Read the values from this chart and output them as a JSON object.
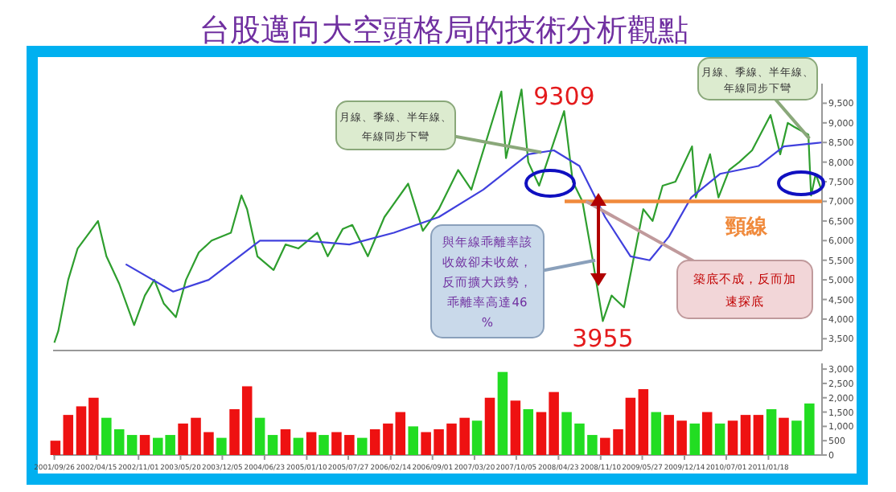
{
  "chart_data": [
    {
      "type": "line",
      "title": "台股邁向大空頭格局的技術分析觀點",
      "tick_labels": "y",
      "xlim": [
        "2001-09-20",
        "2011-09-30"
      ],
      "ylim": [
        3200,
        10000
      ],
      "yticks": [
        {
          "value": 3500,
          "label": "3,500"
        },
        {
          "value": 4000,
          "label": "4,000"
        },
        {
          "value": 4500,
          "label": "4,500"
        },
        {
          "value": 5000,
          "label": "5,000"
        },
        {
          "value": 5500,
          "label": "5,500"
        },
        {
          "value": 6000,
          "label": "6,000"
        },
        {
          "value": 6500,
          "label": "6,500"
        },
        {
          "value": 7000,
          "label": "7,000"
        },
        {
          "value": 7500,
          "label": "7,500"
        },
        {
          "value": 8000,
          "label": "8,000"
        },
        {
          "value": 8500,
          "label": "8,500"
        },
        {
          "value": 9000,
          "label": "9,000"
        },
        {
          "value": 9500,
          "label": "9,500"
        }
      ],
      "series": [
        {
          "color": "#2e9e2e",
          "x": [
            "2001-09-26",
            "2001-10-15",
            "2001-12-01",
            "2002-01-15",
            "2002-04-22",
            "2002-06-01",
            "2002-08-01",
            "2002-10-11",
            "2002-12-01",
            "2003-01-15",
            "2003-03-01",
            "2003-04-28",
            "2003-06-15",
            "2003-08-15",
            "2003-10-15",
            "2004-01-15",
            "2004-03-05",
            "2004-04-01",
            "2004-05-20",
            "2004-08-05",
            "2004-10-01",
            "2004-12-01",
            "2005-03-01",
            "2005-04-20",
            "2005-07-01",
            "2005-08-15",
            "2005-10-28",
            "2006-01-15",
            "2006-05-08",
            "2006-07-17",
            "2006-10-01",
            "2007-01-01",
            "2007-03-05",
            "2007-07-26",
            "2007-08-17",
            "2007-10-30",
            "2007-12-01",
            "2008-01-22",
            "2008-05-20",
            "2008-06-30",
            "2008-08-15",
            "2008-09-30",
            "2008-11-20",
            "2009-01-01",
            "2009-03-01",
            "2009-06-01",
            "2009-07-15",
            "2009-09-01",
            "2009-11-01",
            "2010-01-19",
            "2010-02-06",
            "2010-04-15",
            "2010-05-25",
            "2010-07-15",
            "2010-09-01",
            "2010-11-01",
            "2011-01-28",
            "2011-03-15",
            "2011-04-20",
            "2011-05-20",
            "2011-07-27",
            "2011-08-09",
            "2011-08-31",
            "2011-09-27"
          ],
          "values": [
            3400,
            3700,
            5000,
            5800,
            6500,
            5600,
            4900,
            3850,
            4600,
            5000,
            4400,
            4050,
            5000,
            5700,
            6000,
            6200,
            7150,
            6800,
            5600,
            5250,
            5900,
            5800,
            6200,
            5600,
            6300,
            6400,
            5600,
            6600,
            7450,
            6250,
            6800,
            7800,
            7300,
            9800,
            8100,
            9850,
            8000,
            7400,
            9300,
            7500,
            7000,
            5600,
            3950,
            4600,
            4300,
            6800,
            6500,
            7400,
            7500,
            8400,
            7100,
            8200,
            7100,
            7800,
            8000,
            8300,
            9200,
            8200,
            9000,
            8900,
            8700,
            7150,
            7700,
            7300
          ]
        },
        {
          "color": "#4040dd",
          "x": [
            "2002-09-01",
            "2003-04-15",
            "2003-10-01",
            "2004-06-01",
            "2005-01-01",
            "2005-08-01",
            "2006-03-01",
            "2006-10-01",
            "2007-05-01",
            "2007-12-01",
            "2008-04-01",
            "2008-08-01",
            "2008-12-01",
            "2009-04-01",
            "2009-07-01",
            "2009-10-01",
            "2010-01-15",
            "2010-06-01",
            "2010-12-01",
            "2011-04-01",
            "2011-09-27"
          ],
          "values": [
            5400,
            4700,
            5000,
            6000,
            6000,
            5900,
            6200,
            6600,
            7300,
            8200,
            8300,
            7900,
            6600,
            5600,
            5500,
            6100,
            7100,
            7700,
            7900,
            8400,
            8500
          ]
        }
      ],
      "ref_lines": [
        {
          "axis": "y",
          "value": 7000,
          "label": "頸線",
          "color": "#f08a3c"
        }
      ],
      "annotations": [
        {
          "text": "9309",
          "x": "2008-05-20",
          "y": 9309
        },
        {
          "text": "3955",
          "x": "2008-11-20",
          "y": 3955
        },
        {
          "text": "月線、季線、半年線、年線同步下彎",
          "x": "2008-02-01",
          "y": 8250
        },
        {
          "text": "月線、季線、半年線、年線同步下彎",
          "x": "2011-08-01",
          "y": 8600
        },
        {
          "text": "與年線乖離率該收斂卻未收斂，反而擴大跌勢，乖離率高達46%",
          "x": "2008-10-15",
          "y": 5500
        },
        {
          "text": "築底不成，反而加速探底",
          "x": "2008-09-01",
          "y": 7000
        }
      ]
    },
    {
      "type": "bar",
      "xlim": [
        "2001-09-20",
        "2011-09-30"
      ],
      "ylim": [
        0,
        3200
      ],
      "yticks": [
        0,
        500,
        {
          "value": 1000,
          "label": "1,000"
        },
        {
          "value": 1500,
          "label": "1,500"
        },
        {
          "value": 2000,
          "label": "2,000"
        },
        {
          "value": 2500,
          "label": "2,500"
        },
        {
          "value": 3000,
          "label": "3,000"
        }
      ],
      "xticks": [
        {
          "value": "2001-09-26",
          "label": "2001/09/26"
        },
        {
          "value": "2002-04-15",
          "label": "2002/04/15"
        },
        {
          "value": "2002-11-01",
          "label": "2002/11/01"
        },
        {
          "value": "2003-05-20",
          "label": "2003/05/20"
        },
        {
          "value": "2003-12-05",
          "label": "2003/12/05"
        },
        {
          "value": "2004-06-23",
          "label": "2004/06/23"
        },
        {
          "value": "2005-01-10",
          "label": "2005/01/10"
        },
        {
          "value": "2005-07-27",
          "label": "2005/07/27"
        },
        {
          "value": "2006-02-14",
          "label": "2006/02/14"
        },
        {
          "value": "2006-09-01",
          "label": "2006/09/01"
        },
        {
          "value": "2007-03-20",
          "label": "2007/03/20"
        },
        {
          "value": "2007-10-05",
          "label": "2007/10/05"
        },
        {
          "value": "2008-04-23",
          "label": "2008/04/23"
        },
        {
          "value": "2008-11-10",
          "label": "2008/11/10"
        },
        {
          "value": "2009-05-27",
          "label": "2009/05/27"
        },
        {
          "value": "2009-12-14",
          "label": "2009/12/14"
        },
        {
          "value": "2010-07-01",
          "label": "2010/07/01"
        },
        {
          "value": "2011-01-18",
          "label": "2011/01/18"
        }
      ],
      "x": [
        "2001-10",
        "2001-12",
        "2002-02",
        "2002-04",
        "2002-06",
        "2002-08",
        "2002-10",
        "2002-12",
        "2003-02",
        "2003-04",
        "2003-06",
        "2003-08",
        "2003-10",
        "2003-12",
        "2004-02",
        "2004-04",
        "2004-06",
        "2004-08",
        "2004-10",
        "2004-12",
        "2005-02",
        "2005-04",
        "2005-06",
        "2005-08",
        "2005-10",
        "2005-12",
        "2006-02",
        "2006-04",
        "2006-06",
        "2006-08",
        "2006-10",
        "2006-12",
        "2007-02",
        "2007-04",
        "2007-06",
        "2007-08",
        "2007-10",
        "2007-12",
        "2008-02",
        "2008-04",
        "2008-06",
        "2008-08",
        "2008-10",
        "2008-12",
        "2009-02",
        "2009-04",
        "2009-06",
        "2009-08",
        "2009-10",
        "2009-12",
        "2010-02",
        "2010-04",
        "2010-06",
        "2010-08",
        "2010-10",
        "2010-12",
        "2011-02",
        "2011-04",
        "2011-06",
        "2011-08"
      ],
      "values": [
        500,
        1400,
        1700,
        2000,
        1300,
        900,
        700,
        700,
        600,
        700,
        1100,
        1300,
        800,
        600,
        1600,
        2400,
        1300,
        700,
        900,
        600,
        800,
        700,
        800,
        700,
        600,
        900,
        1100,
        1500,
        1000,
        800,
        900,
        1100,
        1300,
        1200,
        2000,
        2900,
        1900,
        1600,
        1500,
        2200,
        1500,
        1100,
        700,
        600,
        900,
        2000,
        2300,
        1500,
        1400,
        1200,
        1100,
        1500,
        1100,
        1200,
        1400,
        1400,
        1600,
        1300,
        1200,
        1800
      ],
      "colors": [
        "#ee1111",
        "#ee1111",
        "#ee1111",
        "#ee1111",
        "#22dd22",
        "#22dd22",
        "#22dd22",
        "#ee1111",
        "#22dd22",
        "#22dd22",
        "#ee1111",
        "#ee1111",
        "#ee1111",
        "#22dd22",
        "#ee1111",
        "#ee1111",
        "#22dd22",
        "#22dd22",
        "#ee1111",
        "#22dd22",
        "#ee1111",
        "#22dd22",
        "#ee1111",
        "#ee1111",
        "#22dd22",
        "#ee1111",
        "#ee1111",
        "#ee1111",
        "#22dd22",
        "#ee1111",
        "#ee1111",
        "#ee1111",
        "#ee1111",
        "#22dd22",
        "#ee1111",
        "#22dd22",
        "#ee1111",
        "#22dd22",
        "#ee1111",
        "#ee1111",
        "#22dd22",
        "#22dd22",
        "#22dd22",
        "#ee1111",
        "#ee1111",
        "#ee1111",
        "#ee1111",
        "#22dd22",
        "#ee1111",
        "#ee1111",
        "#22dd22",
        "#ee1111",
        "#22dd22",
        "#ee1111",
        "#ee1111",
        "#ee1111",
        "#22dd22",
        "#ee1111",
        "#22dd22",
        "#22dd22"
      ]
    }
  ]
}
